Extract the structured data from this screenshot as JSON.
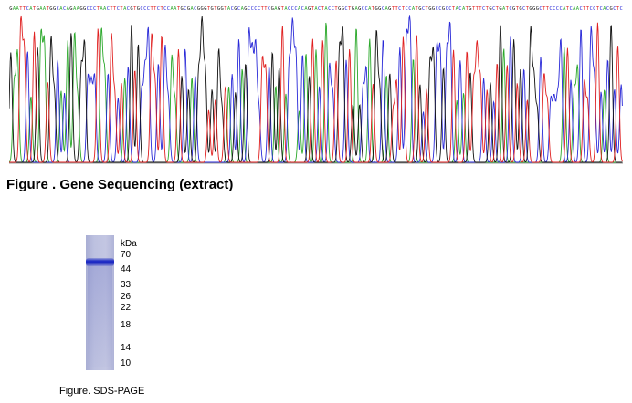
{
  "sequencing": {
    "bases": "GAATTCATGAATGGCACAGAAGGCCCTAACTTCTACGTGCCCTTCTCCAATGCGACGGGTGTGGTACGCAGCCCCTTCGAGTACCCACAGTACTACCTGGCTGAGCCATGGCAGTTCTCCATGCTGGCCGCCTACATGTTTCTGCTGATCGTGCTGGGCTTCCCCATCAACTTCCTCACGCTC",
    "base_colors": {
      "A": "#2aa82a",
      "C": "#2a2ad8",
      "G": "#111111",
      "T": "#e02020"
    },
    "caption": "Figure . Gene Sequencing (extract)"
  },
  "gel": {
    "unit_label": "kDa",
    "markers": [
      "70",
      "44",
      "33",
      "26",
      "22",
      "18",
      "14",
      "10"
    ],
    "band_color": "#2230c8",
    "caption": "Figure. SDS-PAGE"
  }
}
